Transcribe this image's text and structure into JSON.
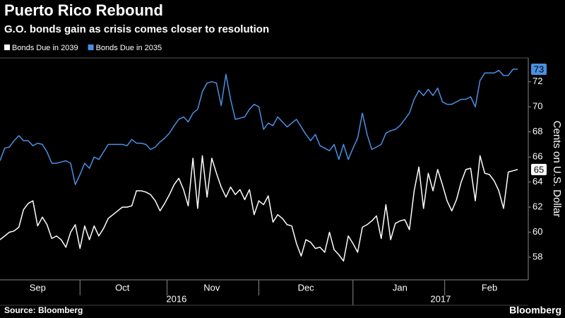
{
  "chart_data": {
    "type": "line",
    "title": "Puerto Rico Rebound",
    "subtitle": "G.O. bonds gain as crisis comes closer to resolution",
    "y_label": "Cents on U.S. Dollar",
    "source": "Source: Bloomberg",
    "brand": "Bloomberg",
    "categories": [
      null,
      null,
      null,
      null,
      null,
      null,
      null,
      null,
      "Sep",
      null,
      null,
      null,
      null,
      null,
      null,
      null,
      null,
      null,
      null,
      null,
      null,
      null,
      null,
      null,
      null,
      null,
      "Oct",
      null,
      null,
      null,
      null,
      null,
      null,
      null,
      null,
      null,
      null,
      null,
      null,
      null,
      null,
      null,
      null,
      null,
      null,
      "Nov",
      null,
      null,
      null,
      null,
      null,
      null,
      null,
      null,
      null,
      null,
      null,
      null,
      null,
      null,
      null,
      null,
      null,
      null,
      null,
      "Dec",
      null,
      null,
      null,
      null,
      null,
      null,
      null,
      null,
      null,
      null,
      null,
      null,
      null,
      null,
      null,
      null,
      null,
      null,
      null,
      "Jan",
      null,
      null,
      null,
      null,
      null,
      null,
      null,
      null,
      null,
      null,
      null,
      null,
      null,
      null,
      null,
      null,
      null,
      null,
      "Feb",
      null,
      null,
      null,
      null,
      null,
      null
    ],
    "years": [
      2016,
      2017
    ],
    "ylim": [
      56.2,
      73.9
    ],
    "yticks": [
      58,
      60,
      62,
      64,
      66,
      68,
      70,
      72
    ],
    "grid": false,
    "series": [
      {
        "name": "Bonds Due in 2039",
        "color": "#ffffff",
        "end_label": "65",
        "values": [
          59.4,
          59.7,
          60.0,
          60.1,
          60.4,
          61.8,
          62.3,
          62.5,
          60.5,
          61.2,
          60.6,
          59.5,
          59.7,
          59.4,
          58.8,
          60.0,
          60.6,
          58.7,
          60.5,
          59.4,
          60.5,
          59.7,
          60.3,
          61.1,
          61.4,
          61.7,
          62.0,
          62.0,
          62.1,
          63.3,
          63.3,
          63.2,
          63.0,
          62.5,
          61.7,
          62.3,
          63.0,
          63.8,
          64.3,
          63.4,
          62.1,
          65.9,
          61.9,
          66.1,
          62.8,
          65.9,
          64.7,
          63.6,
          62.8,
          63.6,
          63.0,
          63.4,
          62.6,
          63.4,
          61.4,
          62.5,
          62.2,
          62.9,
          60.8,
          61.4,
          61.1,
          60.6,
          60.5,
          59.1,
          58.1,
          59.4,
          59.2,
          58.7,
          58.8,
          58.4,
          60.0,
          58.6,
          58.2,
          57.7,
          59.7,
          59.1,
          58.4,
          60.4,
          60.6,
          60.9,
          61.3,
          59.5,
          62.2,
          59.4,
          60.7,
          60.9,
          61.0,
          60.2,
          63.3,
          65.2,
          61.9,
          64.7,
          63.3,
          65.0,
          63.8,
          62.5,
          61.7,
          62.6,
          64.0,
          65.0,
          65.1,
          62.5,
          66.1,
          64.7,
          64.6,
          64.1,
          63.3,
          61.9,
          64.8,
          64.9,
          65.0
        ]
      },
      {
        "name": "Bonds Due in 2035",
        "color": "#4a90e2",
        "end_label": "73",
        "values": [
          65.7,
          66.7,
          66.8,
          67.3,
          67.7,
          67.3,
          67.3,
          66.9,
          67.1,
          67.0,
          66.4,
          65.5,
          65.5,
          65.6,
          65.7,
          65.5,
          63.8,
          64.6,
          65.5,
          65.1,
          66.0,
          65.8,
          66.4,
          67.0,
          67.0,
          67.0,
          67.0,
          66.9,
          67.4,
          67.1,
          67.1,
          67.0,
          66.6,
          66.8,
          67.2,
          67.5,
          67.9,
          68.5,
          69.0,
          69.2,
          68.8,
          69.5,
          69.8,
          71.2,
          71.9,
          72.0,
          71.9,
          70.1,
          72.6,
          70.6,
          69.0,
          69.1,
          69.2,
          69.8,
          70.2,
          70.0,
          68.2,
          68.7,
          68.5,
          69.2,
          68.8,
          68.4,
          68.7,
          69.0,
          68.4,
          67.8,
          67.3,
          67.8,
          66.9,
          66.7,
          66.5,
          67.0,
          65.8,
          67.0,
          65.8,
          66.7,
          67.5,
          69.5,
          67.8,
          66.6,
          66.8,
          67.0,
          67.9,
          68.1,
          68.2,
          68.5,
          69.0,
          69.5,
          70.6,
          71.3,
          70.9,
          71.4,
          70.9,
          71.5,
          70.4,
          70.2,
          70.2,
          70.4,
          70.6,
          70.6,
          70.8,
          70.0,
          72.1,
          72.7,
          72.7,
          72.7,
          72.9,
          72.5,
          72.5,
          73.0,
          73.0
        ]
      }
    ]
  }
}
